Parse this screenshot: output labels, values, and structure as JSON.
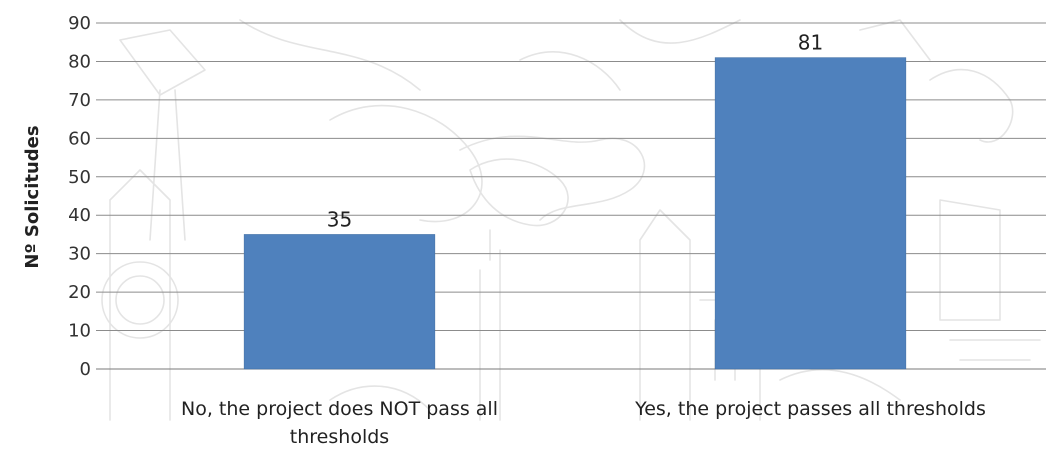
{
  "chart_data": {
    "type": "bar",
    "title": "",
    "xlabel": "",
    "ylabel": "Nº Solicitudes",
    "ylim": [
      0,
      90
    ],
    "yticks": [
      0,
      10,
      20,
      30,
      40,
      50,
      60,
      70,
      80,
      90
    ],
    "grid": true,
    "legend": "none",
    "categories": [
      [
        "No, the project does NOT pass all",
        "thresholds"
      ],
      [
        "Yes, the project passes all thresholds"
      ]
    ],
    "values": [
      35,
      81
    ],
    "data_labels": [
      "35",
      "81"
    ],
    "colors": {
      "bar": "#4f81bd",
      "bar_edge": "#3c6aa0",
      "grid": "#8c8c8c",
      "background_sketch": "#e4e4e4"
    }
  }
}
